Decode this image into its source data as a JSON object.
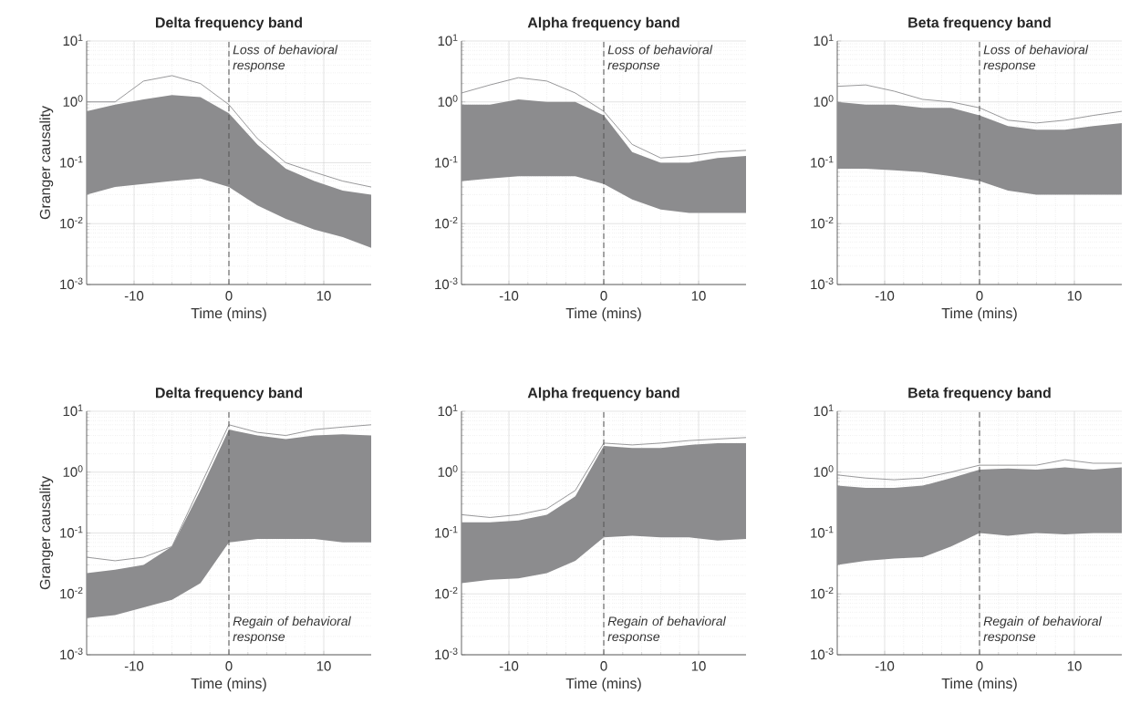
{
  "chart_data": [
    {
      "type": "line",
      "title": "Delta frequency band",
      "xlabel": "Time (mins)",
      "ylabel": "Granger causality",
      "log": true,
      "grid": true,
      "x": [
        -15,
        -12,
        -9,
        -6,
        -3,
        0,
        3,
        6,
        9,
        12,
        15
      ],
      "xlim": [
        -15,
        15
      ],
      "ylim": [
        0.001,
        10
      ],
      "xticks": [
        -10,
        0,
        10
      ],
      "yticks": [
        {
          "value": 0.001,
          "label": "10$^{-3}$"
        },
        {
          "value": 0.01,
          "label": "10$^{-2}$"
        },
        {
          "value": 0.1,
          "label": "10$^{-1}$"
        },
        {
          "value": 1,
          "label": "10$^{0}$"
        },
        {
          "value": 10,
          "label": "10$^{1}$"
        }
      ],
      "ref_lines": [
        {
          "axis": "x",
          "value": 0,
          "label": "Loss of behavioral response",
          "color": "#555555",
          "line_style": "dashed"
        }
      ],
      "series": [
        {
          "color": "#8c8c8e",
          "values": [
            1.0,
            1.0,
            2.2,
            2.7,
            2.0,
            0.9,
            0.25,
            0.1,
            0.07,
            0.05,
            0.04
          ],
          "lower": [
            0.03,
            0.04,
            0.045,
            0.05,
            0.055,
            0.04,
            0.02,
            0.012,
            0.008,
            0.006,
            0.004
          ],
          "upper": [
            0.7,
            0.9,
            1.1,
            1.3,
            1.2,
            0.65,
            0.2,
            0.08,
            0.05,
            0.035,
            0.03
          ]
        }
      ]
    },
    {
      "type": "line",
      "title": "Alpha frequency band",
      "xlabel": "Time (mins)",
      "log": true,
      "grid": true,
      "x": [
        -15,
        -12,
        -9,
        -6,
        -3,
        0,
        3,
        6,
        9,
        12,
        15
      ],
      "xlim": [
        -15,
        15
      ],
      "ylim": [
        0.001,
        10
      ],
      "xticks": [
        -10,
        0,
        10
      ],
      "yticks": [
        {
          "value": 0.001,
          "label": "10$^{-3}$"
        },
        {
          "value": 0.01,
          "label": "10$^{-2}$"
        },
        {
          "value": 0.1,
          "label": "10$^{-1}$"
        },
        {
          "value": 1,
          "label": "10$^{0}$"
        },
        {
          "value": 10,
          "label": "10$^{1}$"
        }
      ],
      "ref_lines": [
        {
          "axis": "x",
          "value": 0,
          "label": "Loss of behavioral response",
          "color": "#555555",
          "line_style": "dashed"
        }
      ],
      "series": [
        {
          "color": "#8c8c8e",
          "values": [
            1.4,
            1.9,
            2.5,
            2.2,
            1.4,
            0.7,
            0.2,
            0.12,
            0.13,
            0.15,
            0.16
          ],
          "lower": [
            0.05,
            0.055,
            0.06,
            0.06,
            0.06,
            0.045,
            0.025,
            0.017,
            0.015,
            0.015,
            0.015
          ],
          "upper": [
            0.9,
            0.9,
            1.1,
            1.0,
            1.0,
            0.6,
            0.15,
            0.1,
            0.1,
            0.12,
            0.13
          ]
        }
      ]
    },
    {
      "type": "line",
      "title": "Beta frequency band",
      "xlabel": "Time (mins)",
      "log": true,
      "grid": true,
      "x": [
        -15,
        -12,
        -9,
        -6,
        -3,
        0,
        3,
        6,
        9,
        12,
        15
      ],
      "xlim": [
        -15,
        15
      ],
      "ylim": [
        0.001,
        10
      ],
      "xticks": [
        -10,
        0,
        10
      ],
      "yticks": [
        {
          "value": 0.001,
          "label": "10$^{-3}$"
        },
        {
          "value": 0.01,
          "label": "10$^{-2}$"
        },
        {
          "value": 0.1,
          "label": "10$^{-1}$"
        },
        {
          "value": 1,
          "label": "10$^{0}$"
        },
        {
          "value": 10,
          "label": "10$^{1}$"
        }
      ],
      "ref_lines": [
        {
          "axis": "x",
          "value": 0,
          "label": "Loss of behavioral response",
          "color": "#555555",
          "line_style": "dashed"
        }
      ],
      "series": [
        {
          "color": "#8c8c8e",
          "values": [
            1.8,
            1.9,
            1.5,
            1.1,
            1.0,
            0.8,
            0.5,
            0.45,
            0.5,
            0.6,
            0.7
          ],
          "lower": [
            0.08,
            0.08,
            0.075,
            0.07,
            0.06,
            0.05,
            0.035,
            0.03,
            0.03,
            0.03,
            0.03
          ],
          "upper": [
            1.0,
            0.9,
            0.9,
            0.8,
            0.8,
            0.6,
            0.4,
            0.35,
            0.35,
            0.4,
            0.45
          ]
        }
      ]
    },
    {
      "type": "line",
      "title": "Delta frequency band",
      "xlabel": "Time (mins)",
      "ylabel": "Granger causality",
      "log": true,
      "grid": true,
      "x": [
        -15,
        -12,
        -9,
        -6,
        -3,
        0,
        3,
        6,
        9,
        12,
        15
      ],
      "xlim": [
        -15,
        15
      ],
      "ylim": [
        0.001,
        10
      ],
      "xticks": [
        -10,
        0,
        10
      ],
      "yticks": [
        {
          "value": 0.001,
          "label": "10$^{-3}$"
        },
        {
          "value": 0.01,
          "label": "10$^{-2}$"
        },
        {
          "value": 0.1,
          "label": "10$^{-1}$"
        },
        {
          "value": 1,
          "label": "10$^{0}$"
        },
        {
          "value": 10,
          "label": "10$^{1}$"
        }
      ],
      "ref_lines": [
        {
          "axis": "x",
          "value": 0,
          "label": "Regain of behavioral response",
          "color": "#555555",
          "line_style": "dashed"
        }
      ],
      "series": [
        {
          "color": "#8c8c8e",
          "values": [
            0.04,
            0.035,
            0.04,
            0.06,
            0.6,
            6.0,
            4.5,
            4.0,
            5.0,
            5.5,
            6.0
          ],
          "lower": [
            0.004,
            0.0045,
            0.006,
            0.008,
            0.015,
            0.07,
            0.08,
            0.08,
            0.08,
            0.07,
            0.07
          ],
          "upper": [
            0.022,
            0.025,
            0.03,
            0.06,
            0.5,
            5.0,
            4.0,
            3.5,
            4.0,
            4.2,
            4.0
          ]
        }
      ]
    },
    {
      "type": "line",
      "title": "Alpha frequency band",
      "xlabel": "Time (mins)",
      "log": true,
      "grid": true,
      "x": [
        -15,
        -12,
        -9,
        -6,
        -3,
        0,
        3,
        6,
        9,
        12,
        15
      ],
      "xlim": [
        -15,
        15
      ],
      "ylim": [
        0.001,
        10
      ],
      "xticks": [
        -10,
        0,
        10
      ],
      "yticks": [
        {
          "value": 0.001,
          "label": "10$^{-3}$"
        },
        {
          "value": 0.01,
          "label": "10$^{-2}$"
        },
        {
          "value": 0.1,
          "label": "10$^{-1}$"
        },
        {
          "value": 1,
          "label": "10$^{0}$"
        },
        {
          "value": 10,
          "label": "10$^{1}$"
        }
      ],
      "ref_lines": [
        {
          "axis": "x",
          "value": 0,
          "label": "Regain of behavioral response",
          "color": "#555555",
          "line_style": "dashed"
        }
      ],
      "series": [
        {
          "color": "#8c8c8e",
          "values": [
            0.2,
            0.18,
            0.2,
            0.25,
            0.5,
            3.0,
            2.8,
            3.0,
            3.3,
            3.5,
            3.7
          ],
          "lower": [
            0.015,
            0.017,
            0.018,
            0.022,
            0.035,
            0.085,
            0.09,
            0.085,
            0.085,
            0.075,
            0.08
          ],
          "upper": [
            0.15,
            0.15,
            0.16,
            0.2,
            0.4,
            2.7,
            2.5,
            2.5,
            2.8,
            3.0,
            3.0
          ]
        }
      ]
    },
    {
      "type": "line",
      "title": "Beta frequency band",
      "xlabel": "Time (mins)",
      "log": true,
      "grid": true,
      "x": [
        -15,
        -12,
        -9,
        -6,
        -3,
        0,
        3,
        6,
        9,
        12,
        15
      ],
      "xlim": [
        -15,
        15
      ],
      "ylim": [
        0.001,
        10
      ],
      "xticks": [
        -10,
        0,
        10
      ],
      "yticks": [
        {
          "value": 0.001,
          "label": "10$^{-3}$"
        },
        {
          "value": 0.01,
          "label": "10$^{-2}$"
        },
        {
          "value": 0.1,
          "label": "10$^{-1}$"
        },
        {
          "value": 1,
          "label": "10$^{0}$"
        },
        {
          "value": 10,
          "label": "10$^{1}$"
        }
      ],
      "ref_lines": [
        {
          "axis": "x",
          "value": 0,
          "label": "Regain of behavioral response",
          "color": "#555555",
          "line_style": "dashed"
        }
      ],
      "series": [
        {
          "color": "#8c8c8e",
          "values": [
            0.9,
            0.8,
            0.75,
            0.8,
            1.0,
            1.3,
            1.3,
            1.3,
            1.6,
            1.4,
            1.4
          ],
          "lower": [
            0.03,
            0.035,
            0.038,
            0.04,
            0.06,
            0.1,
            0.09,
            0.1,
            0.095,
            0.1,
            0.1
          ],
          "upper": [
            0.6,
            0.55,
            0.55,
            0.6,
            0.8,
            1.1,
            1.15,
            1.1,
            1.2,
            1.1,
            1.2
          ]
        }
      ]
    }
  ]
}
